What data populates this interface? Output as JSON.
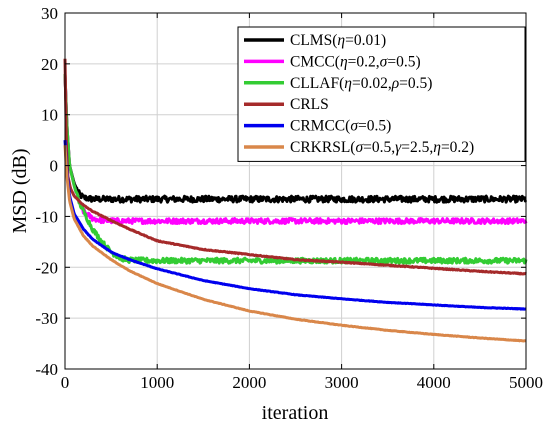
{
  "chart_data": {
    "type": "line",
    "title": "",
    "xlabel": "iteration",
    "ylabel": "MSD (dB)",
    "xlim": [
      0,
      5000
    ],
    "ylim": [
      -40,
      30
    ],
    "xticks": [
      0,
      1000,
      2000,
      3000,
      4000,
      5000
    ],
    "yticks": [
      30,
      20,
      10,
      0,
      -10,
      -20,
      -30,
      -40
    ],
    "grid": true,
    "legend_position": "top-right",
    "series": [
      {
        "name": "CLMS(η=0.01)",
        "legend_plain": "CLMS(",
        "legend_greek1": "η",
        "legend_rest": "=0.01)",
        "color": "#000000",
        "noise": 0.6,
        "x": [
          0,
          20,
          50,
          100,
          150,
          200,
          300,
          500,
          1000,
          2000,
          3000,
          4000,
          5000
        ],
        "y": [
          18,
          8,
          0,
          -3.5,
          -5.5,
          -6.3,
          -6.6,
          -6.6,
          -6.6,
          -6.6,
          -6.6,
          -6.6,
          -6.6
        ]
      },
      {
        "name": "CMCC(η=0.2,σ=0.5)",
        "legend_rich": [
          [
            "CMCC(",
            false
          ],
          [
            "η",
            true
          ],
          [
            "=0.2,",
            false
          ],
          [
            "σ",
            true
          ],
          [
            "=0.5)",
            false
          ]
        ],
        "color": "#ff00ff",
        "noise": 0.5,
        "x": [
          0,
          20,
          50,
          100,
          150,
          200,
          300,
          400,
          600,
          1000,
          2000,
          3000,
          4000,
          5000
        ],
        "y": [
          18,
          8,
          0,
          -4,
          -7,
          -9,
          -10.4,
          -10.8,
          -10.9,
          -10.9,
          -10.9,
          -10.9,
          -10.9,
          -10.9
        ]
      },
      {
        "name": "CLLAF(η=0.02,ρ=0.5)",
        "legend_rich": [
          [
            "CLLAF(",
            false
          ],
          [
            "η",
            true
          ],
          [
            "=0.02,",
            false
          ],
          [
            "ρ",
            true
          ],
          [
            "=0.5)",
            false
          ]
        ],
        "color": "#33cc33",
        "noise": 0.5,
        "x": [
          0,
          20,
          50,
          100,
          150,
          200,
          300,
          400,
          500,
          600,
          700,
          1000,
          2000,
          3000,
          4000,
          5000
        ],
        "y": [
          18,
          8,
          0,
          -4,
          -7,
          -9,
          -12.5,
          -15,
          -17,
          -18.2,
          -18.6,
          -18.7,
          -18.7,
          -18.7,
          -18.7,
          -18.7
        ]
      },
      {
        "name": "CRLS",
        "legend_rich": [
          [
            "CRLS",
            false
          ]
        ],
        "color": "#a52a2a",
        "noise": 0.08,
        "x": [
          0,
          15,
          30,
          60,
          100,
          200,
          300,
          500,
          700,
          1000,
          1500,
          2000,
          2500,
          3000,
          3500,
          4000,
          4500,
          5000
        ],
        "y": [
          21,
          4,
          -2,
          -4.5,
          -6,
          -7.8,
          -9,
          -10.8,
          -12.5,
          -14.8,
          -16.5,
          -17.5,
          -18.5,
          -19,
          -19.6,
          -20.2,
          -20.8,
          -21.3
        ]
      },
      {
        "name": "CRMCC(σ=0.5)",
        "legend_rich": [
          [
            "CRMCC(",
            false
          ],
          [
            "σ",
            true
          ],
          [
            "=0.5)",
            false
          ]
        ],
        "color": "#0000ee",
        "noise": 0.05,
        "x": [
          0,
          10,
          20,
          50,
          100,
          200,
          300,
          500,
          700,
          1000,
          1500,
          2000,
          2500,
          3000,
          3500,
          4000,
          4500,
          5000
        ],
        "y": [
          5,
          2,
          -1,
          -6,
          -9.5,
          -12.5,
          -14.5,
          -17,
          -18.5,
          -20.3,
          -22.6,
          -24.2,
          -25.4,
          -26.2,
          -26.9,
          -27.4,
          -27.9,
          -28.2
        ]
      },
      {
        "name": "CRKRSL(σ=0.5,γ=2.5,η=0.2)",
        "legend_rich": [
          [
            "CRKRSL(",
            false
          ],
          [
            "σ",
            true
          ],
          [
            "=0.5,",
            false
          ],
          [
            "γ",
            true
          ],
          [
            "=2.5,",
            false
          ],
          [
            "η",
            true
          ],
          [
            "=0.2)",
            false
          ]
        ],
        "color": "#d9874a",
        "noise": 0.05,
        "x": [
          0,
          10,
          20,
          50,
          100,
          200,
          300,
          500,
          700,
          1000,
          1500,
          2000,
          2500,
          3000,
          3500,
          4000,
          4500,
          5000
        ],
        "y": [
          4,
          1,
          -2,
          -7,
          -10.5,
          -13.8,
          -15.8,
          -18.5,
          -20.7,
          -23.2,
          -26.3,
          -28.6,
          -30.2,
          -31.4,
          -32.4,
          -33.2,
          -33.9,
          -34.5
        ]
      }
    ]
  }
}
